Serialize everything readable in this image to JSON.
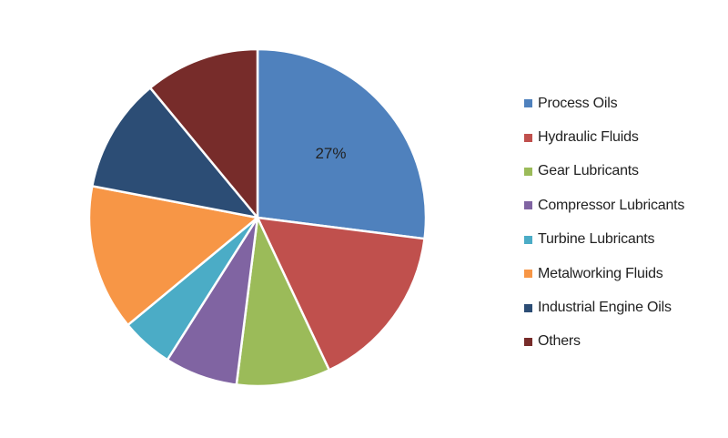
{
  "chart_data": {
    "type": "pie",
    "title": "",
    "categories": [
      "Process Oils",
      "Hydraulic Fluids",
      "Gear Lubricants",
      "Compressor Lubricants",
      "Turbine Lubricants",
      "Metalworking Fluids",
      "Industrial Engine Oils",
      "Others"
    ],
    "values": [
      27,
      16,
      9,
      7,
      5,
      14,
      11,
      11
    ],
    "unit": "%",
    "colors": [
      "#4F81BD",
      "#C0504D",
      "#9BBB59",
      "#8064A2",
      "#4BACC6",
      "#F79646",
      "#2C4D75",
      "#772C2A"
    ],
    "data_labels": [
      {
        "category": "Process Oils",
        "text": "27%"
      }
    ],
    "start_angle": "12 o'clock",
    "direction": "clockwise",
    "legend_position": "right"
  }
}
